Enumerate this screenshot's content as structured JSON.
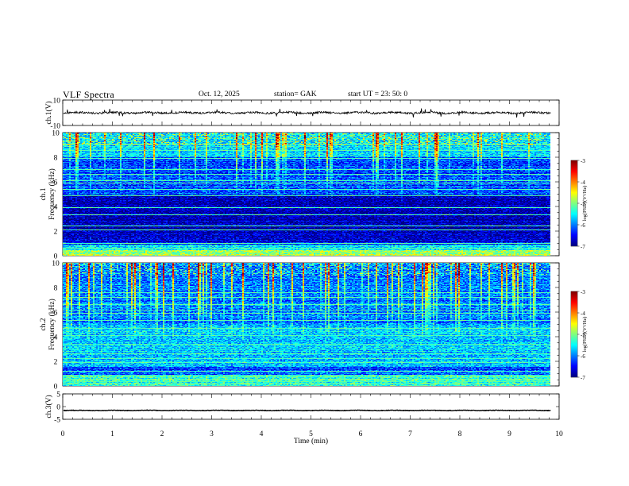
{
  "header": {
    "title": "VLF  Spectra",
    "date": "Oct. 12, 2025",
    "station": "station= GAK",
    "start_ut": "start  UT  =    23: 50: 0"
  },
  "chart_data": [
    {
      "type": "line",
      "panel": "ch1-waveform",
      "ylabel": "ch.1(V)",
      "ylim": [
        -10,
        10
      ],
      "yticks": [
        "10",
        "-10"
      ],
      "xlim": [
        0,
        10
      ],
      "data_end_min": 9.83,
      "series": [
        {
          "values_note": "noisy trace near 0 V",
          "mean_v": 0.0,
          "amplitude_v": 1.5
        }
      ]
    },
    {
      "type": "heatmap",
      "panel": "ch1-spectrogram",
      "ylabel_top": "ch.1",
      "ylabel": "Frequency  (kHz)",
      "ylim": [
        0,
        10
      ],
      "yticks": [
        "0",
        "2",
        "4",
        "6",
        "8",
        "10"
      ],
      "xlim": [
        0,
        10
      ],
      "data_end_min": 9.83,
      "colorbar": {
        "label": "log(PSD)(V²/Hz)",
        "range": [
          -7,
          -3
        ],
        "ticks": [
          "-3",
          "-4",
          "-5",
          "-6",
          "-7"
        ]
      },
      "horizontal_lines_khz": [
        0.2,
        0.6,
        1.0,
        2.1,
        2.4,
        3.3,
        3.9,
        4.9,
        5.4,
        5.9,
        6.1,
        6.6,
        7.0,
        7.9,
        8.6,
        9.1
      ],
      "background_log_psd": {
        "0-1.5khz": -6.6,
        "1.5-5khz": -6.8,
        "5-8khz": -6.2,
        "8-10khz": -5.6
      }
    },
    {
      "type": "heatmap",
      "panel": "ch2-spectrogram",
      "ylabel_top": "ch.2",
      "ylabel": "Frequency  (kHz)",
      "ylim": [
        0,
        10
      ],
      "yticks": [
        "0",
        "2",
        "4",
        "6",
        "8",
        "10"
      ],
      "xlim": [
        0,
        10
      ],
      "data_end_min": 9.83,
      "colorbar": {
        "label": "log(PSD)(V²/Hz)",
        "range": [
          -7,
          -3
        ],
        "ticks": [
          "-3",
          "-4",
          "-5",
          "-6",
          "-7"
        ]
      },
      "horizontal_lines_khz": [
        0.1,
        0.3,
        0.5,
        1.2,
        1.9,
        2.2,
        2.6,
        3.4,
        4.1,
        4.7,
        5.3,
        5.9,
        6.2,
        6.6,
        7.2,
        7.6
      ],
      "background_log_psd": {
        "0-1.5khz": -6.2,
        "1.5-5khz": -5.7,
        "5-8khz": -6.0,
        "8-10khz": -6.0
      }
    },
    {
      "type": "line",
      "panel": "ch3-waveform",
      "ylabel": "ch.3(V)",
      "ylim": [
        -5,
        5
      ],
      "yticks": [
        "5",
        "0",
        "-5"
      ],
      "xlim": [
        0,
        10
      ],
      "xlabel": "Time  (min)",
      "xticks": [
        "0",
        "1",
        "2",
        "3",
        "4",
        "5",
        "6",
        "7",
        "8",
        "9",
        "10"
      ],
      "data_end_min": 9.83,
      "series": [
        {
          "values_note": "flat trace with fine ripple",
          "mean_v": -1.5,
          "amplitude_v": 0.2
        }
      ]
    }
  ]
}
